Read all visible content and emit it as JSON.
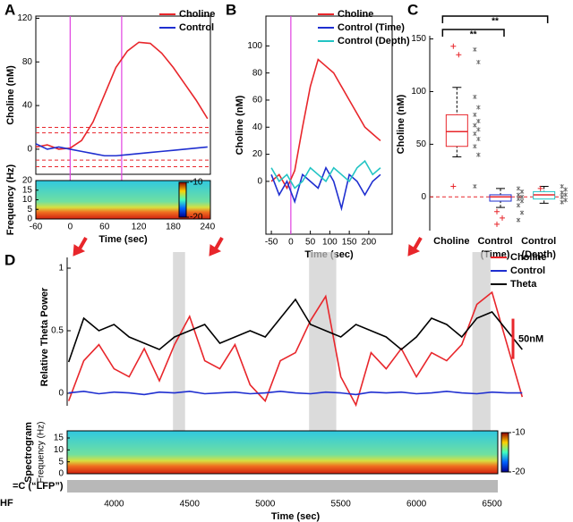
{
  "chart_data": [
    {
      "panel": "A",
      "type": "line",
      "xlabel": "Time (sec)",
      "ylabel": "Choline (nM)",
      "x": [
        -60,
        -40,
        -20,
        0,
        20,
        40,
        60,
        80,
        100,
        120,
        140,
        160,
        180,
        200,
        220,
        240
      ],
      "series": [
        {
          "name": "Choline",
          "color": "#e8262b",
          "values": [
            2,
            4,
            0,
            1,
            8,
            25,
            50,
            75,
            90,
            98,
            97,
            88,
            75,
            60,
            45,
            28
          ]
        },
        {
          "name": "Control",
          "color": "#1f2fd0",
          "values": [
            5,
            0,
            2,
            0,
            -2,
            -4,
            -6,
            -6,
            -5,
            -4,
            -3,
            -2,
            -1,
            0,
            1,
            2
          ]
        }
      ],
      "xlim": [
        -60,
        245
      ],
      "xticks": [
        -60,
        0,
        60,
        120,
        180,
        240
      ],
      "ylim": [
        -23,
        122
      ],
      "yticks": [
        0,
        40,
        80,
        120
      ],
      "vlines": [
        0,
        90
      ],
      "vline_color": "#e040e0",
      "hlines": [
        20,
        15,
        -10,
        -16
      ],
      "hline_color": "#e8262b",
      "spectrogram": {
        "ylabel": "Frequency (Hz)",
        "ylim": [
          0,
          20
        ],
        "yticks": [
          0,
          5,
          10,
          15,
          20
        ],
        "colorbar_ticks": [
          -10,
          -20
        ]
      }
    },
    {
      "panel": "B",
      "type": "line",
      "xlabel": "Time (sec)",
      "ylabel": "Choline (nM)",
      "x": [
        -50,
        -30,
        -10,
        10,
        30,
        50,
        70,
        90,
        110,
        130,
        150,
        170,
        190,
        210,
        230
      ],
      "series": [
        {
          "name": "Choline",
          "color": "#e8262b",
          "values": [
            0,
            5,
            -5,
            8,
            40,
            70,
            90,
            85,
            80,
            70,
            60,
            50,
            40,
            35,
            30
          ]
        },
        {
          "name": "Control (Time)",
          "color": "#1f2fd0",
          "values": [
            5,
            -10,
            0,
            -15,
            5,
            0,
            -5,
            10,
            0,
            -20,
            5,
            0,
            -10,
            0,
            5
          ]
        },
        {
          "name": "Control (Depth)",
          "color": "#22c4c4",
          "values": [
            10,
            0,
            5,
            -5,
            0,
            10,
            5,
            0,
            10,
            5,
            0,
            10,
            15,
            5,
            10
          ]
        }
      ],
      "xlim": [
        -64,
        260
      ],
      "xticks": [
        -50,
        0,
        50,
        100,
        150,
        200
      ],
      "ylim": [
        -39,
        122
      ],
      "yticks": [
        0,
        20,
        40,
        60,
        80,
        100
      ],
      "vlines": [
        0
      ],
      "vline_color": "#e040e0"
    },
    {
      "panel": "C",
      "type": "box",
      "ylabel": "Choline (nM)",
      "categories": [
        [
          "Choline"
        ],
        [
          "Control",
          "(Time)"
        ],
        [
          "Control",
          "(Depth)"
        ]
      ],
      "colors": [
        "#e8262b",
        "#1f2fd0",
        "#22c4c4"
      ],
      "boxes": [
        {
          "whisker_low": 38,
          "q1": 48,
          "median": 62,
          "q3": 78,
          "whisker_high": 104,
          "outliers": [
            143,
            135,
            10
          ]
        },
        {
          "whisker_low": -10,
          "q1": -4,
          "median": 0,
          "q3": 2,
          "whisker_high": 8,
          "outliers": [
            -14,
            -20,
            -26
          ]
        },
        {
          "whisker_low": -6,
          "q1": -2,
          "median": 2,
          "q3": 5,
          "whisker_high": 10,
          "outliers": [
            8
          ]
        }
      ],
      "points": [
        [
          140,
          128,
          95,
          85,
          78,
          72,
          68,
          64,
          60,
          55,
          48,
          40,
          10
        ],
        [
          8,
          5,
          2,
          0,
          -2,
          -4,
          -8,
          -15,
          -22
        ],
        [
          10,
          7,
          4,
          2,
          0,
          -3,
          -5
        ]
      ],
      "ylim": [
        -32,
        170
      ],
      "yticks": [
        0,
        50,
        100,
        150
      ],
      "hlines": [
        0
      ],
      "hline_color": "#e8262b",
      "significance": [
        {
          "label": "**",
          "from": 0,
          "to": 1
        },
        {
          "label": "**",
          "from": 0,
          "to": 2
        }
      ]
    },
    {
      "panel": "D",
      "type": "line",
      "xlabel": "Time (sec)",
      "ylabel": "Relative Theta  Power",
      "x": [
        3700,
        3800,
        3900,
        4000,
        4100,
        4200,
        4300,
        4400,
        4500,
        4600,
        4700,
        4800,
        4900,
        5000,
        5100,
        5200,
        5300,
        5400,
        5500,
        5600,
        5700,
        5800,
        5900,
        6000,
        6100,
        6200,
        6300,
        6400,
        6500,
        6600,
        6700
      ],
      "series": [
        {
          "name": "Choline",
          "color": "#e8262b",
          "axis": "y2",
          "values": [
            -10,
            40,
            60,
            30,
            20,
            55,
            15,
            60,
            95,
            40,
            30,
            60,
            10,
            -10,
            40,
            50,
            90,
            120,
            20,
            -15,
            50,
            30,
            55,
            20,
            50,
            40,
            60,
            110,
            125,
            60,
            -5
          ]
        },
        {
          "name": "Control",
          "color": "#1f2fd0",
          "axis": "y2",
          "values": [
            0,
            2,
            -1,
            1,
            0,
            -2,
            1,
            0,
            2,
            -1,
            0,
            1,
            -1,
            0,
            2,
            0,
            -1,
            1,
            0,
            -2,
            1,
            0,
            1,
            -1,
            0,
            2,
            0,
            -1,
            1,
            0,
            0
          ]
        },
        {
          "name": "Theta",
          "color": "#000000",
          "values": [
            0.25,
            0.6,
            0.5,
            0.55,
            0.45,
            0.4,
            0.35,
            0.45,
            0.5,
            0.55,
            0.4,
            0.45,
            0.5,
            0.45,
            0.6,
            0.75,
            0.55,
            0.5,
            0.45,
            0.55,
            0.5,
            0.45,
            0.35,
            0.45,
            0.6,
            0.55,
            0.45,
            0.6,
            0.65,
            0.5,
            0.35
          ]
        }
      ],
      "xlim": [
        3690,
        6710
      ],
      "xticks": [
        4000,
        4500,
        5000,
        5500,
        6000,
        6500
      ],
      "ylim": [
        -0.1,
        1.0
      ],
      "yticks": [
        0,
        0.5,
        1
      ],
      "y2lim": [
        -16,
        155
      ],
      "scale_bar": {
        "value": 50,
        "label": "50nM"
      },
      "highlights": [
        [
          4390,
          4470
        ],
        [
          5290,
          5470
        ],
        [
          6370,
          6490
        ]
      ],
      "spectrogram": {
        "title": "Spectrogram",
        "ylabel": "Frequency (Hz)",
        "ylim": [
          0,
          18
        ],
        "yticks": [
          0,
          5,
          10,
          15
        ],
        "colorbar_ticks": [
          -10,
          -20
        ]
      },
      "lfp_label": "=C (“LFP”)",
      "side_label": "HF"
    }
  ]
}
